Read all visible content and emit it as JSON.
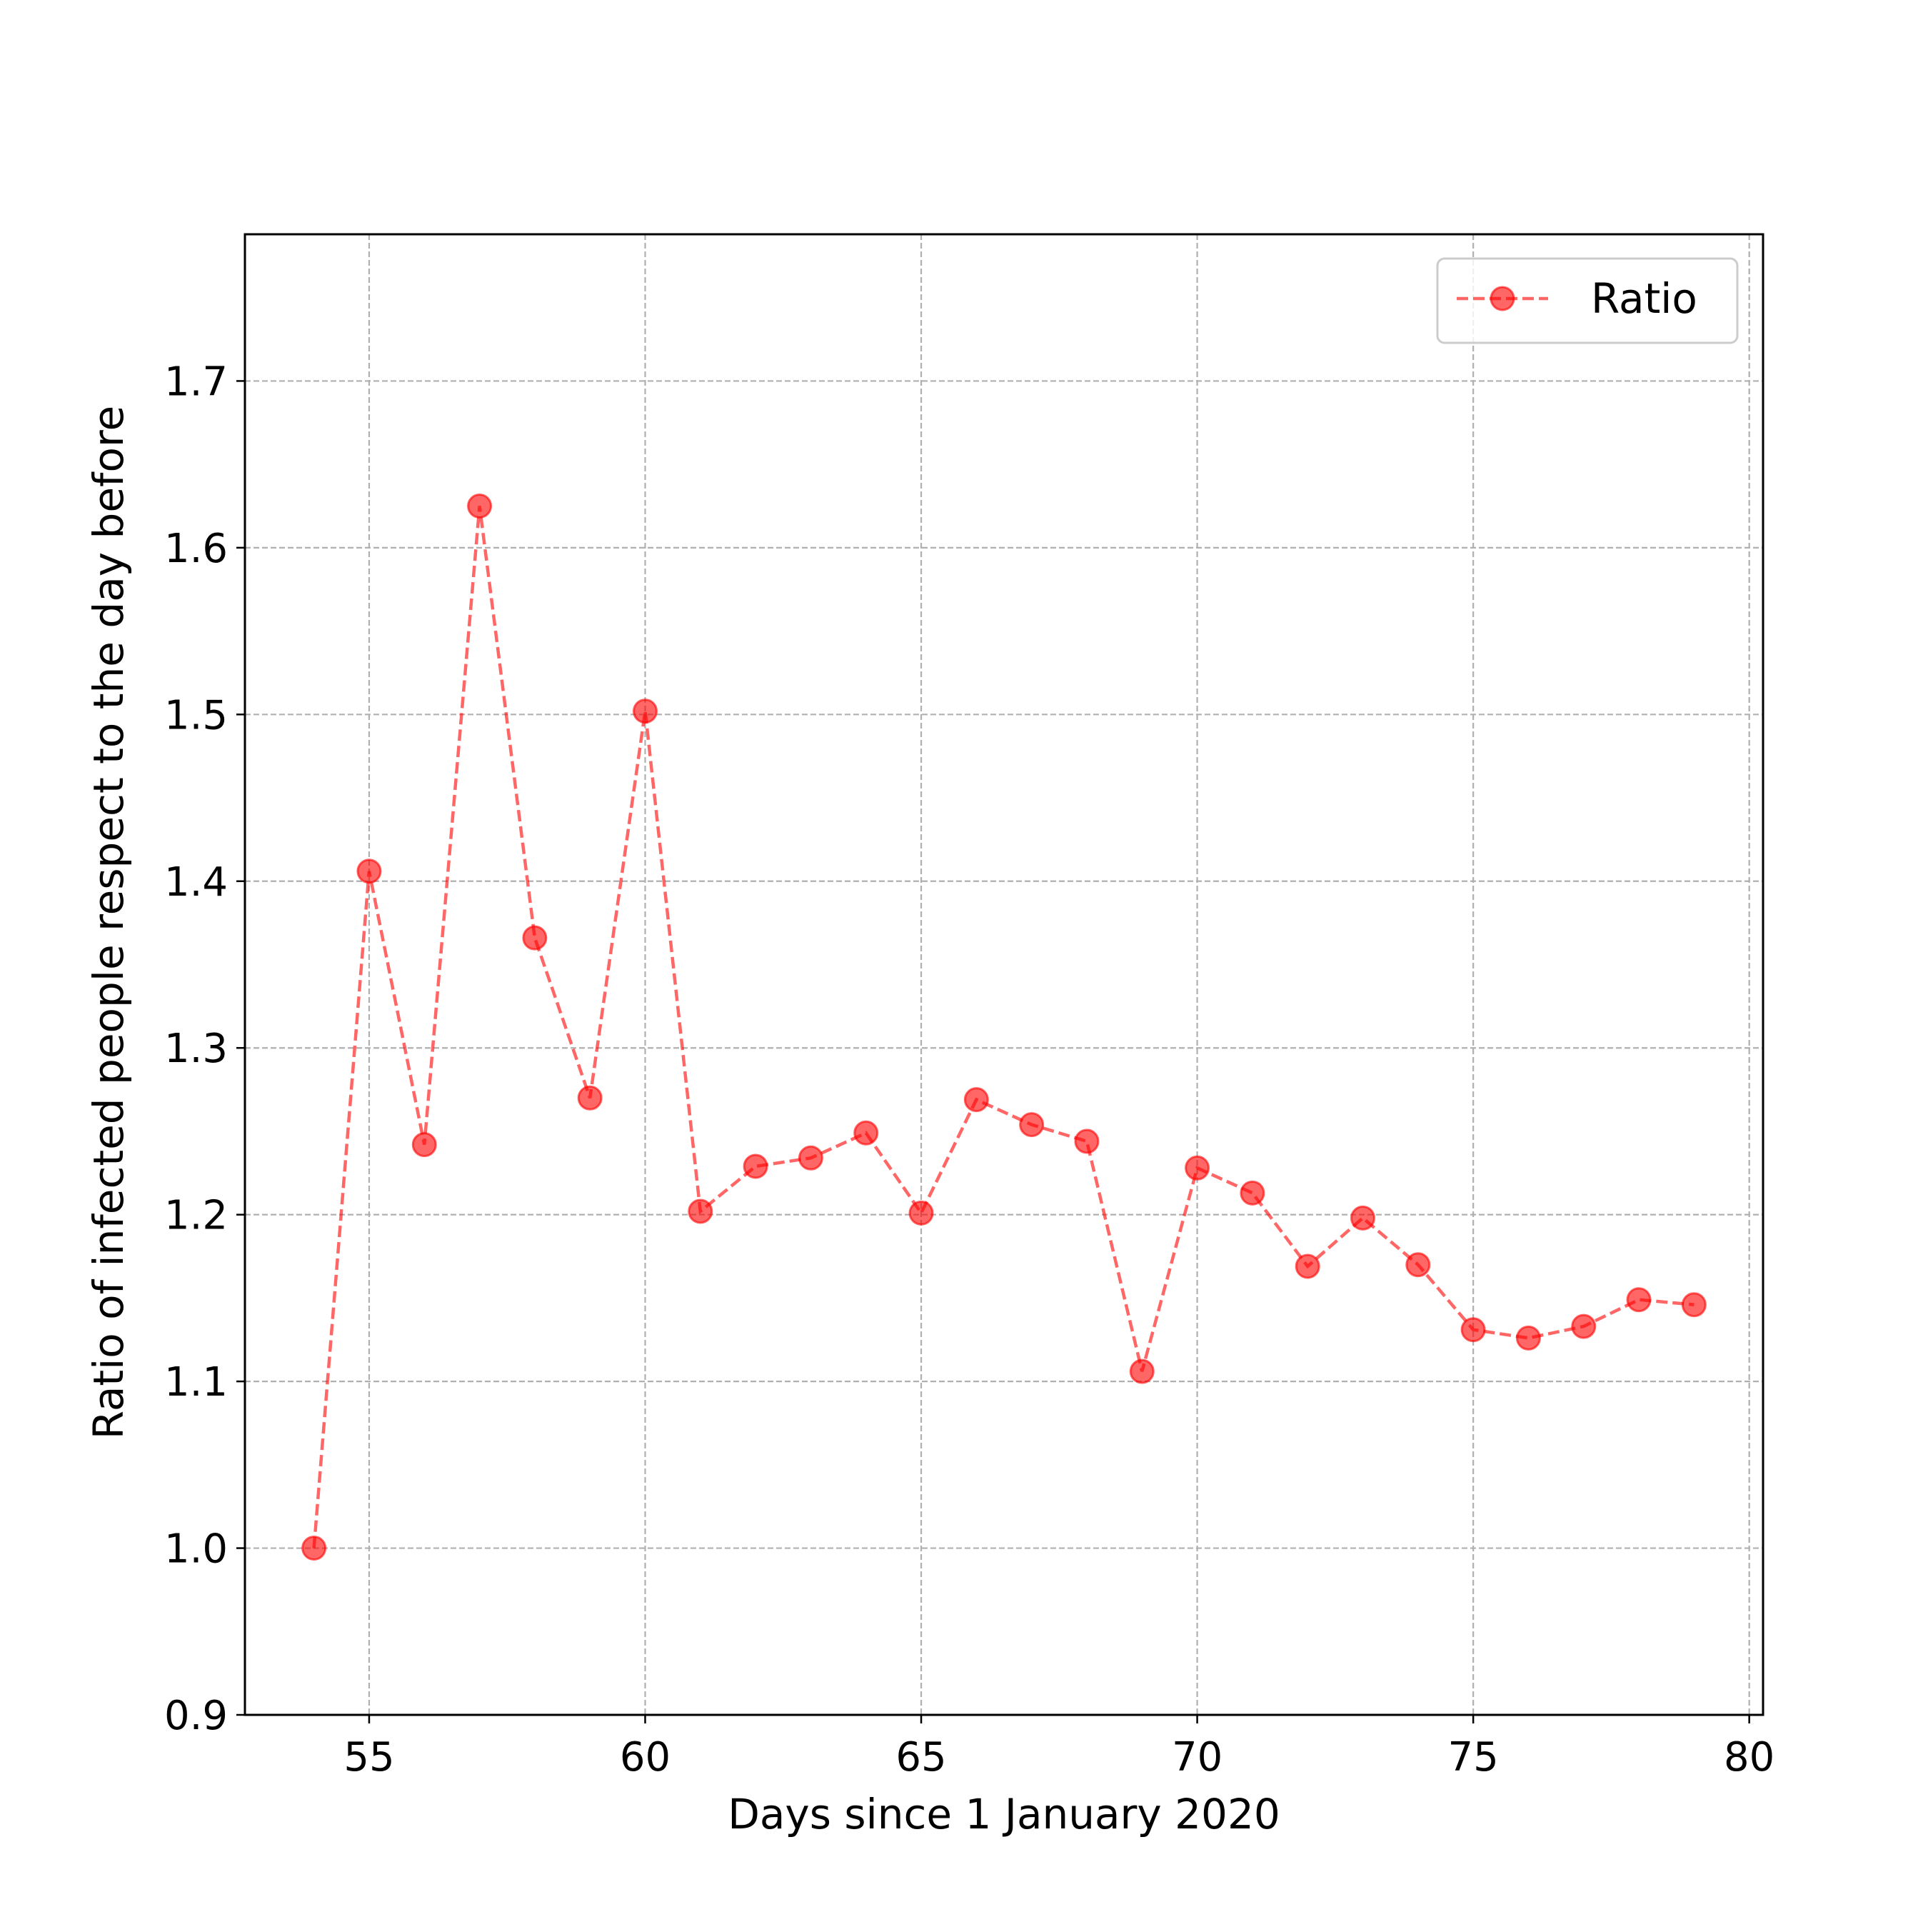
{
  "chart_data": {
    "type": "line",
    "title": "",
    "xlabel": "Days since 1 January 2020",
    "ylabel": "Ratio of infected people respect to the day before",
    "xlim": [
      52.75,
      80.25
    ],
    "ylim": [
      0.9,
      1.788
    ],
    "xticks": [
      55,
      60,
      65,
      70,
      75,
      80
    ],
    "xtick_labels": [
      "55",
      "60",
      "65",
      "70",
      "75",
      "80"
    ],
    "yticks": [
      0.9,
      1.0,
      1.1,
      1.2,
      1.3,
      1.4,
      1.5,
      1.6,
      1.7
    ],
    "ytick_labels": [
      "0.9",
      "1.0",
      "1.1",
      "1.2",
      "1.3",
      "1.4",
      "1.5",
      "1.6",
      "1.7"
    ],
    "grid": true,
    "legend_position": "top-right",
    "series": [
      {
        "name": "Ratio",
        "color": "#ff0000",
        "line_style": "dashed",
        "marker": "circle",
        "x": [
          54,
          55,
          56,
          57,
          58,
          59,
          60,
          61,
          62,
          63,
          64,
          65,
          66,
          67,
          68,
          69,
          70,
          71,
          72,
          73,
          74,
          75,
          76,
          77,
          78,
          79
        ],
        "y": [
          1.0,
          1.406,
          1.242,
          1.625,
          1.366,
          1.27,
          1.502,
          1.202,
          1.229,
          1.234,
          1.249,
          1.201,
          1.269,
          1.254,
          1.244,
          1.106,
          1.228,
          1.213,
          1.169,
          1.198,
          1.17,
          1.131,
          1.126,
          1.133,
          1.149,
          1.146
        ]
      }
    ]
  }
}
